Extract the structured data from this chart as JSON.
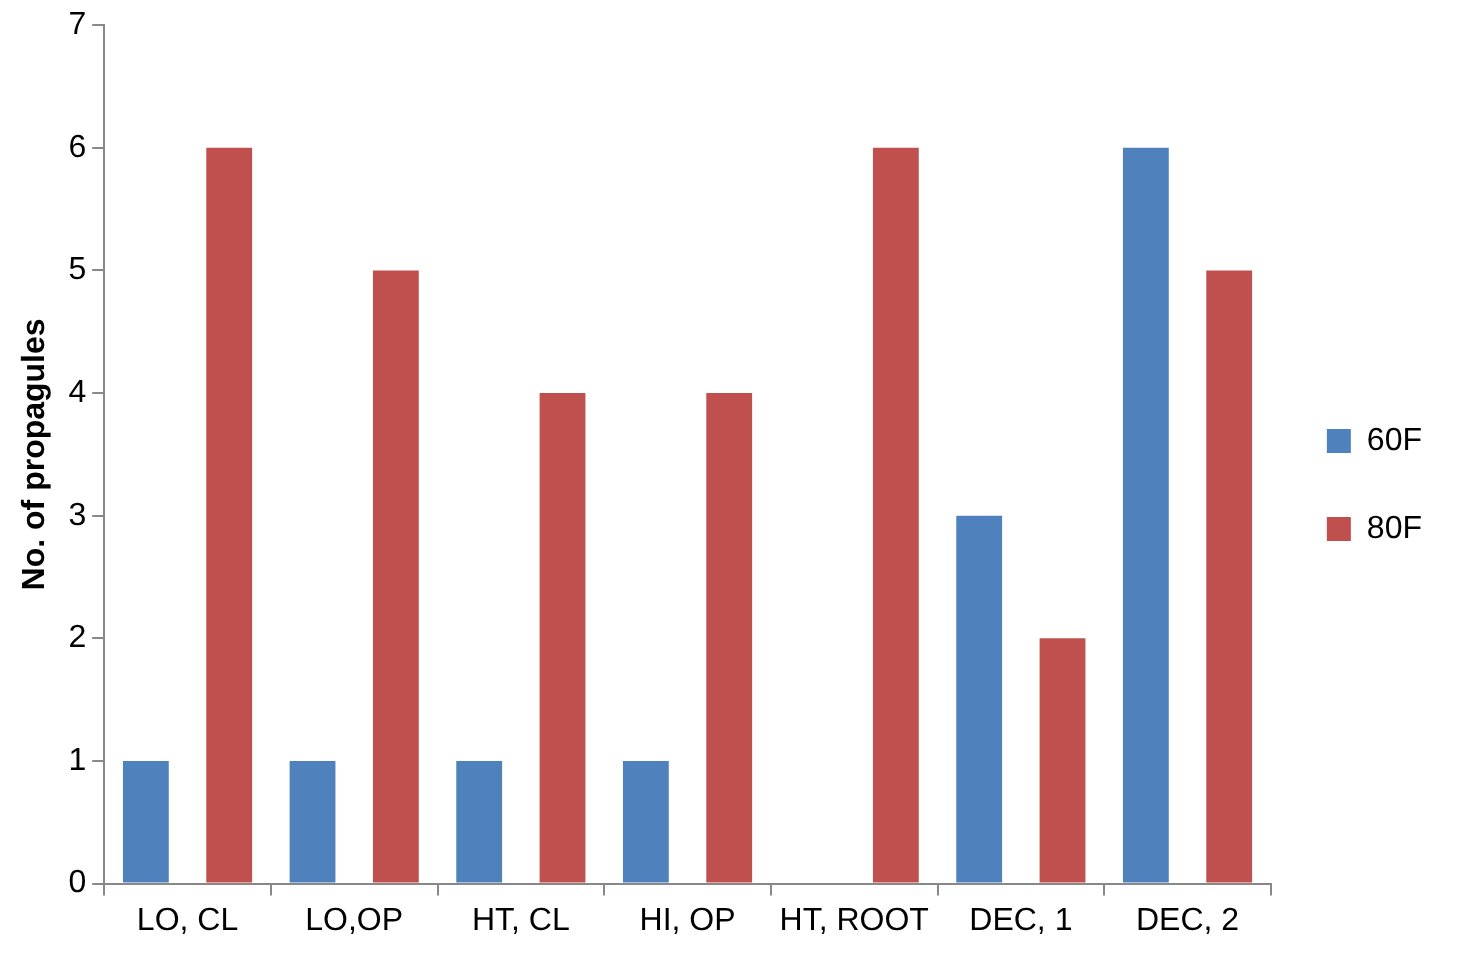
{
  "chart_data": {
    "type": "bar",
    "ylabel": "No. of propagules",
    "categories": [
      "LO, CL",
      "LO,OP",
      "HT, CL",
      "HI, OP",
      "HT, ROOT",
      "DEC, 1",
      "DEC, 2"
    ],
    "series": [
      {
        "name": "60F",
        "color": "#4f81bd",
        "values": [
          1,
          1,
          1,
          1,
          0,
          3,
          6
        ]
      },
      {
        "name": "80F",
        "color": "#c0504d",
        "values": [
          6,
          5,
          4,
          4,
          6,
          2,
          5
        ]
      }
    ],
    "ylim": [
      0,
      7
    ],
    "yticks": [
      0,
      1,
      2,
      3,
      4,
      5,
      6,
      7
    ],
    "grid": false,
    "legend": "right"
  }
}
